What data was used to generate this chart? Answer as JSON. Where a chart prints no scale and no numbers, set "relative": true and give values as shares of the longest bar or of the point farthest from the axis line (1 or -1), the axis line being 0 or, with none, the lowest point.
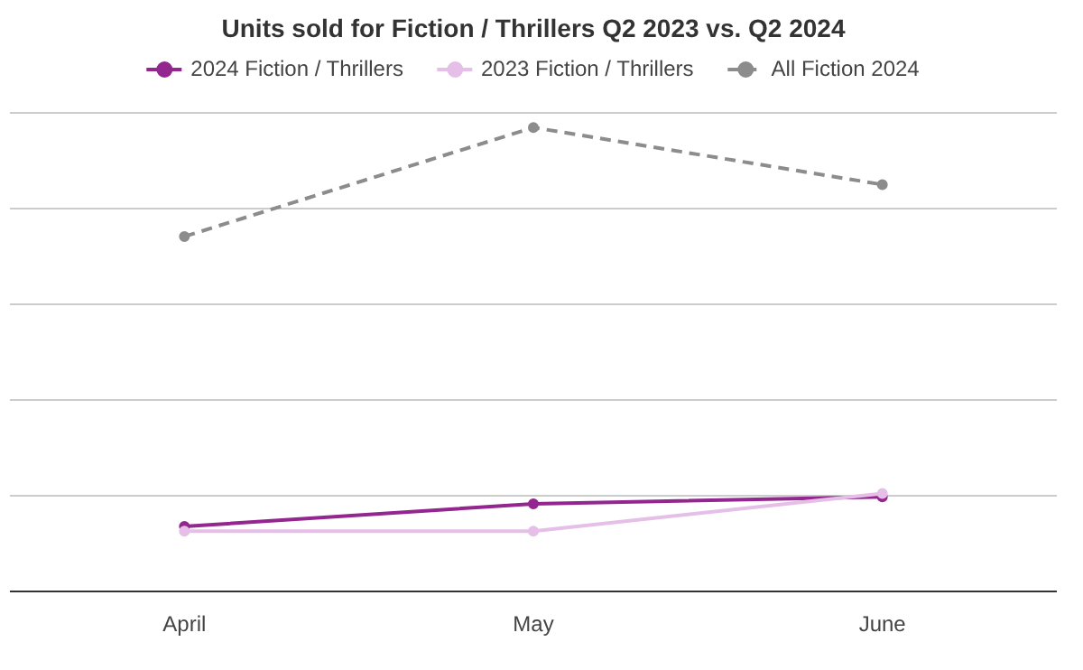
{
  "chart_data": {
    "type": "line",
    "title": "Units sold for Fiction / Thrillers Q2 2023 vs. Q2 2024",
    "categories": [
      "April",
      "May",
      "June"
    ],
    "relative": true,
    "grid": "y",
    "legend": "top",
    "marker": "circle",
    "series": [
      {
        "name": "2024 Fiction / Thrillers",
        "color": "#93278f",
        "values": [
          0.14,
          0.189,
          0.204
        ],
        "line_style": "solid"
      },
      {
        "name": "2023 Fiction / Thrillers",
        "color": "#e6bfe8",
        "values": [
          0.13,
          0.13,
          0.211
        ],
        "line_style": "solid"
      },
      {
        "name": "All Fiction 2024",
        "color": "#8c8c8c",
        "values": [
          0.765,
          1,
          0.877
        ],
        "line_style": "dashed"
      }
    ]
  }
}
